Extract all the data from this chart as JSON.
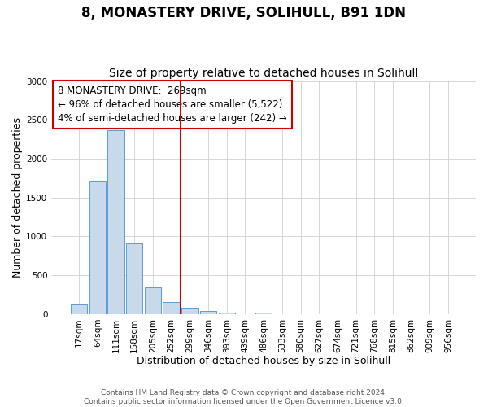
{
  "title": "8, MONASTERY DRIVE, SOLIHULL, B91 1DN",
  "subtitle": "Size of property relative to detached houses in Solihull",
  "xlabel": "Distribution of detached houses by size in Solihull",
  "ylabel": "Number of detached properties",
  "bar_labels": [
    "17sqm",
    "64sqm",
    "111sqm",
    "158sqm",
    "205sqm",
    "252sqm",
    "299sqm",
    "346sqm",
    "393sqm",
    "439sqm",
    "486sqm",
    "533sqm",
    "580sqm",
    "627sqm",
    "674sqm",
    "721sqm",
    "768sqm",
    "815sqm",
    "862sqm",
    "909sqm",
    "956sqm"
  ],
  "bar_values": [
    120,
    1720,
    2370,
    905,
    345,
    155,
    80,
    45,
    20,
    0,
    15,
    0,
    0,
    0,
    0,
    0,
    0,
    0,
    0,
    0,
    0
  ],
  "bar_color": "#c9d9ec",
  "bar_edge_color": "#5b9bd5",
  "annotation_box_text_line1": "8 MONASTERY DRIVE:  269sqm",
  "annotation_box_text_line2": "← 96% of detached houses are smaller (5,522)",
  "annotation_box_text_line3": "4% of semi-detached houses are larger (242) →",
  "vline_color": "#cc0000",
  "vline_x": 5.5,
  "ylim": [
    0,
    3000
  ],
  "yticks": [
    0,
    500,
    1000,
    1500,
    2000,
    2500,
    3000
  ],
  "footer_line1": "Contains HM Land Registry data © Crown copyright and database right 2024.",
  "footer_line2": "Contains public sector information licensed under the Open Government Licence v3.0.",
  "title_fontsize": 12,
  "subtitle_fontsize": 10,
  "axis_label_fontsize": 9,
  "tick_fontsize": 7.5,
  "annotation_fontsize": 8.5,
  "footer_fontsize": 6.5
}
